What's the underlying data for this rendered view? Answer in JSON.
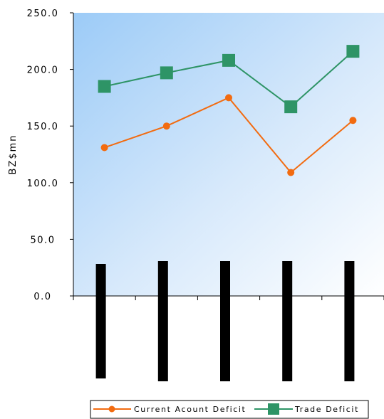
{
  "chart_data": {
    "type": "line",
    "ylabel": "BZ$mn",
    "ylim": [
      0,
      250
    ],
    "yticks": [
      "0.0",
      "50.0",
      "100.0",
      "150.0",
      "200.0",
      "250.0"
    ],
    "categories": [
      "",
      "",
      "",
      "",
      ""
    ],
    "grid": false,
    "legend_position": "bottom",
    "series": [
      {
        "name": "Current Acount Deficit",
        "values": [
          131,
          150,
          175,
          109,
          155
        ],
        "color": "#f26b10",
        "marker": "circle"
      },
      {
        "name": "Trade Deficit",
        "values": [
          185,
          197,
          208,
          167,
          216
        ],
        "color": "#2e9466",
        "marker": "square"
      }
    ],
    "category_label_bars": 5,
    "background": {
      "from": "#9ccbf7",
      "to": "#ffffff"
    }
  }
}
